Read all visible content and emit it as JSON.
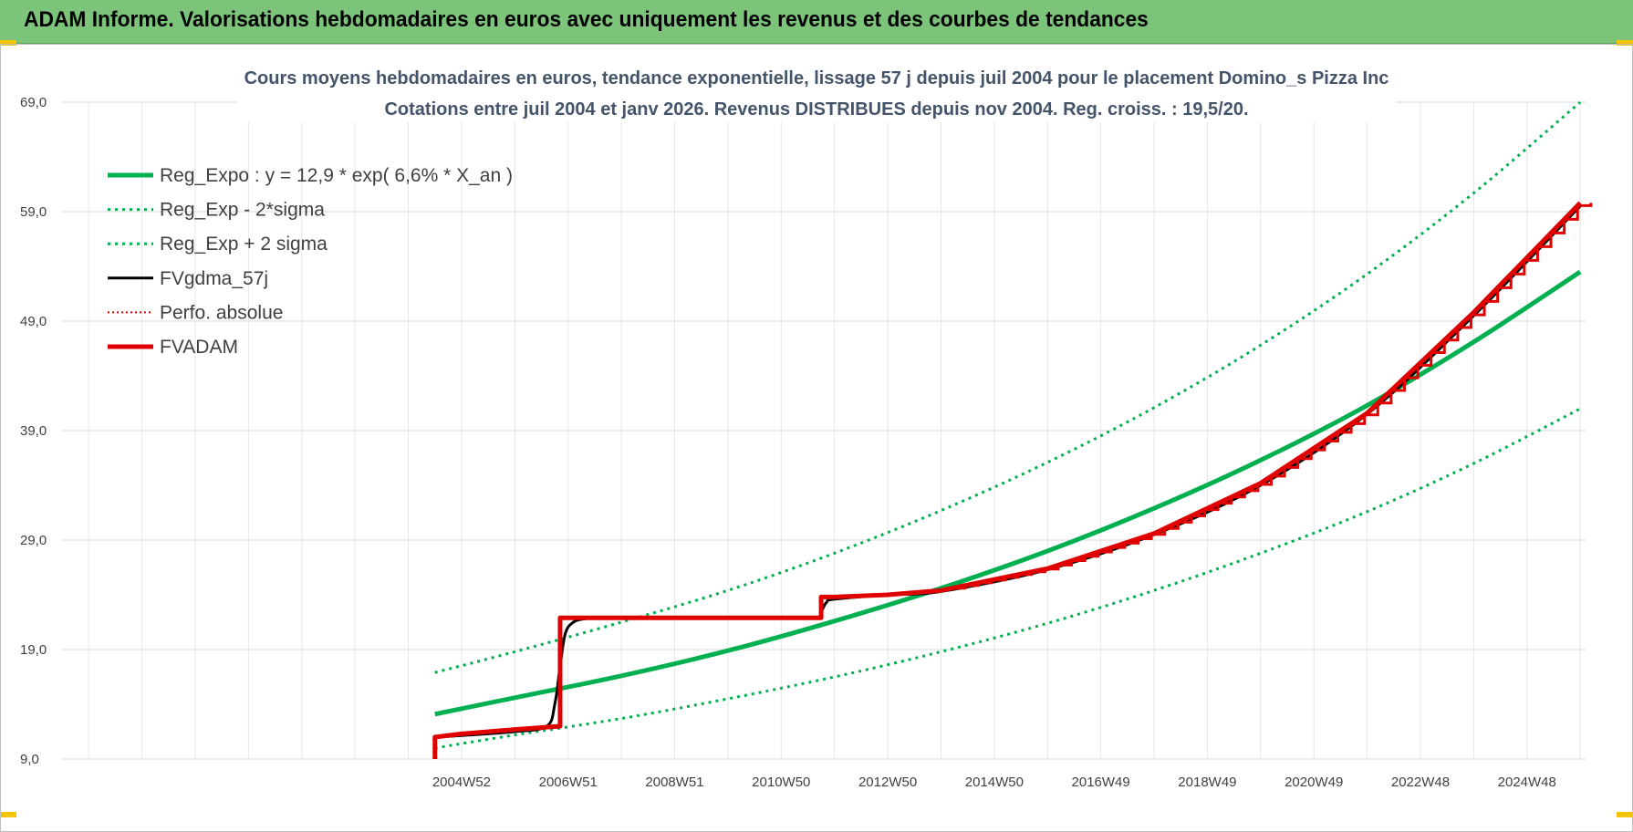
{
  "header": {
    "title": "ADAM Informe. Valorisations hebdomadaires en euros avec uniquement les revenus et des courbes de tendances"
  },
  "colors": {
    "banner": "#7cc47a",
    "reg_green": "#00b050",
    "fvgdma_black": "#000000",
    "fvadam_red": "#e00000"
  },
  "chart_data": {
    "type": "line",
    "title": [
      "Cours moyens hebdomadaires en euros, tendance exponentielle, lissage 57 j depuis juil 2004 pour le placement Domino_s Pizza Inc",
      "Cotations entre juil 2004 et janv 2026. Revenus DISTRIBUES depuis nov 2004. Reg. croiss. : 19,5/20."
    ],
    "y_ticks": [
      "69,0",
      "59,0",
      "49,0",
      "39,0",
      "29,0",
      "19,0",
      "9,0"
    ],
    "ylim": [
      9,
      69
    ],
    "xlim": [
      1997.5,
      2026.1
    ],
    "x_ticks": [
      {
        "label": "2004W52",
        "x": 2005.0
      },
      {
        "label": "2006W51",
        "x": 2007.0
      },
      {
        "label": "2008W51",
        "x": 2009.0
      },
      {
        "label": "2010W50",
        "x": 2011.0
      },
      {
        "label": "2012W50",
        "x": 2013.0
      },
      {
        "label": "2014W50",
        "x": 2015.0
      },
      {
        "label": "2016W49",
        "x": 2017.0
      },
      {
        "label": "2018W49",
        "x": 2019.0
      },
      {
        "label": "2020W49",
        "x": 2021.0
      },
      {
        "label": "2022W48",
        "x": 2023.0
      },
      {
        "label": "2024W48",
        "x": 2025.0
      }
    ],
    "grid": true,
    "legend_position": "top-left",
    "series": [
      {
        "name": "Reg_Expo : y = 12,9 * exp( 6,6% *  X_an )",
        "style": "solid-thick",
        "color": "#00b050",
        "x": [
          2004.5,
          2006,
          2008,
          2010,
          2012,
          2014,
          2016,
          2018,
          2020,
          2022,
          2024,
          2026
        ],
        "y": [
          13.1,
          14.6,
          16.6,
          18.9,
          21.6,
          24.6,
          28.0,
          31.9,
          36.3,
          41.3,
          47.1,
          53.5
        ]
      },
      {
        "name": "Reg_Exp - 2*sigma",
        "style": "dotted",
        "color": "#00b050",
        "x": [
          2004.5,
          2006,
          2008,
          2010,
          2012,
          2014,
          2016,
          2018,
          2020,
          2022,
          2024,
          2026
        ],
        "y": [
          10.0,
          11.2,
          12.7,
          14.5,
          16.5,
          18.8,
          21.4,
          24.4,
          27.8,
          31.6,
          36.0,
          41.0
        ]
      },
      {
        "name": "Reg_Exp + 2 sigma",
        "style": "dotted",
        "color": "#00b050",
        "x": [
          2004.5,
          2006,
          2008,
          2010,
          2012,
          2014,
          2016,
          2018,
          2020,
          2022,
          2024,
          2026
        ],
        "y": [
          16.9,
          18.8,
          21.5,
          24.4,
          27.8,
          31.7,
          36.1,
          41.1,
          46.8,
          53.3,
          60.7,
          69.0
        ]
      },
      {
        "name": "FVgdma_57j",
        "style": "solid",
        "color": "#000000",
        "x": [
          2004.5,
          2005.0,
          2006.0,
          2006.6,
          2006.75,
          2006.85,
          2006.95,
          2007.1,
          2007.3,
          2007.6,
          2008.5,
          2010.0,
          2011.6,
          2011.75,
          2011.85,
          2012.0,
          2013.0,
          2014.0,
          2016.0,
          2018.0,
          2020.0,
          2022.0,
          2024.0,
          2026.0
        ],
        "y": [
          11.0,
          11.15,
          11.5,
          12.0,
          14.0,
          17.5,
          20.5,
          21.5,
          21.8,
          21.9,
          21.9,
          21.9,
          21.9,
          22.5,
          23.3,
          23.6,
          24.0,
          24.3,
          26.3,
          29.5,
          34.0,
          40.5,
          49.5,
          59.5
        ]
      },
      {
        "name": "Perfo. absolue",
        "style": "dotted-thin",
        "color": "#e00000",
        "x": [],
        "y": []
      },
      {
        "name": "FVADAM",
        "style": "solid-thick",
        "color": "#e00000",
        "x": [
          2004.5,
          2004.5,
          2005.0,
          2006.0,
          2006.85,
          2006.85,
          2007.5,
          2010.0,
          2011.75,
          2011.75,
          2012.0,
          2013.0,
          2014.0,
          2016.0,
          2018.0,
          2020.0,
          2022.0,
          2024.0,
          2026.0
        ],
        "y": [
          9.0,
          11.0,
          11.3,
          11.7,
          12.0,
          21.9,
          21.9,
          21.9,
          21.9,
          23.8,
          23.8,
          24.0,
          24.4,
          26.4,
          29.6,
          34.2,
          40.6,
          49.8,
          59.8
        ]
      }
    ]
  }
}
